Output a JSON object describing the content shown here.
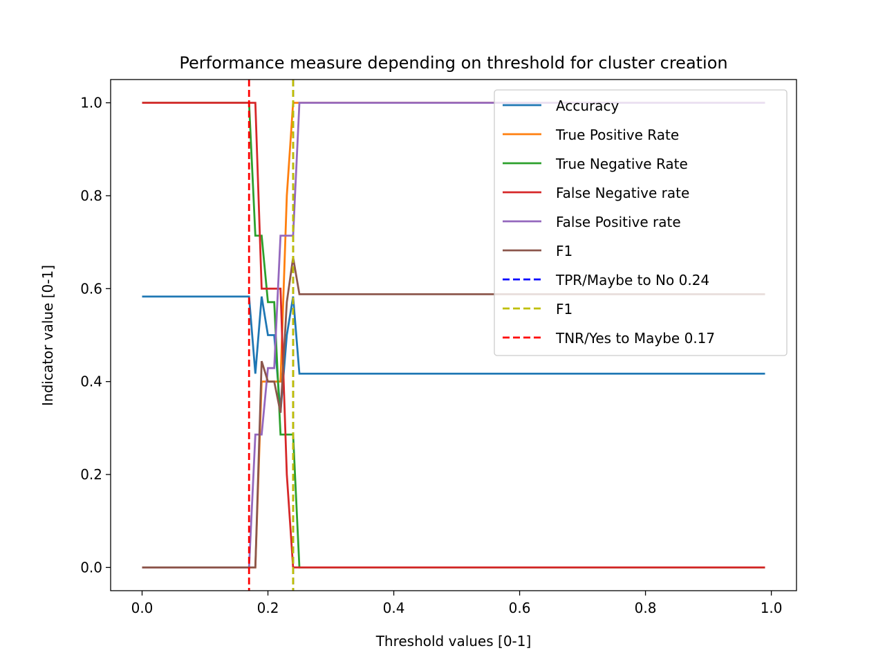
{
  "chart_data": {
    "type": "line",
    "title": "Performance measure depending on threshold for cluster creation",
    "xlabel": "Threshold values [0-1]",
    "ylabel": "Indicator value [0-1]",
    "xlim": [
      -0.05,
      1.04
    ],
    "ylim": [
      -0.05,
      1.05
    ],
    "xticks": [
      0.0,
      0.2,
      0.4,
      0.6,
      0.8,
      1.0
    ],
    "xtick_labels": [
      "0.0",
      "0.2",
      "0.4",
      "0.6",
      "0.8",
      "1.0"
    ],
    "yticks": [
      0.0,
      0.2,
      0.4,
      0.6,
      0.8,
      1.0
    ],
    "ytick_labels": [
      "0.0",
      "0.2",
      "0.4",
      "0.6",
      "0.8",
      "1.0"
    ],
    "grid": false,
    "legend_position": "upper right",
    "series": [
      {
        "name": "Accuracy",
        "color": "#1f77b4",
        "style": "solid",
        "points": [
          [
            0.0,
            0.583
          ],
          [
            0.17,
            0.583
          ],
          [
            0.18,
            0.417
          ],
          [
            0.19,
            0.583
          ],
          [
            0.2,
            0.5
          ],
          [
            0.21,
            0.5
          ],
          [
            0.22,
            0.333
          ],
          [
            0.23,
            0.5
          ],
          [
            0.24,
            0.583
          ],
          [
            0.25,
            0.417
          ],
          [
            0.99,
            0.417
          ]
        ]
      },
      {
        "name": "True Positive Rate",
        "color": "#ff7f0e",
        "style": "solid",
        "points": [
          [
            0.0,
            0.0
          ],
          [
            0.17,
            0.0
          ],
          [
            0.18,
            0.0
          ],
          [
            0.19,
            0.4
          ],
          [
            0.2,
            0.4
          ],
          [
            0.21,
            0.4
          ],
          [
            0.22,
            0.4
          ],
          [
            0.23,
            0.8
          ],
          [
            0.24,
            1.0
          ],
          [
            0.99,
            1.0
          ]
        ]
      },
      {
        "name": "True Negative Rate",
        "color": "#2ca02c",
        "style": "solid",
        "points": [
          [
            0.0,
            1.0
          ],
          [
            0.17,
            1.0
          ],
          [
            0.18,
            0.714
          ],
          [
            0.19,
            0.714
          ],
          [
            0.2,
            0.571
          ],
          [
            0.21,
            0.571
          ],
          [
            0.22,
            0.286
          ],
          [
            0.23,
            0.286
          ],
          [
            0.24,
            0.286
          ],
          [
            0.25,
            0.0
          ],
          [
            0.99,
            0.0
          ]
        ]
      },
      {
        "name": "False Negative rate",
        "color": "#d62728",
        "style": "solid",
        "points": [
          [
            0.0,
            1.0
          ],
          [
            0.17,
            1.0
          ],
          [
            0.18,
            1.0
          ],
          [
            0.19,
            0.6
          ],
          [
            0.2,
            0.6
          ],
          [
            0.21,
            0.6
          ],
          [
            0.22,
            0.6
          ],
          [
            0.23,
            0.2
          ],
          [
            0.24,
            0.0
          ],
          [
            0.99,
            0.0
          ]
        ]
      },
      {
        "name": "False Positive rate",
        "color": "#9467bd",
        "style": "solid",
        "points": [
          [
            0.0,
            0.0
          ],
          [
            0.17,
            0.0
          ],
          [
            0.18,
            0.286
          ],
          [
            0.19,
            0.286
          ],
          [
            0.2,
            0.429
          ],
          [
            0.21,
            0.429
          ],
          [
            0.22,
            0.714
          ],
          [
            0.23,
            0.714
          ],
          [
            0.24,
            0.714
          ],
          [
            0.25,
            1.0
          ],
          [
            0.99,
            1.0
          ]
        ]
      },
      {
        "name": "F1",
        "color": "#8c564b",
        "style": "solid",
        "points": [
          [
            0.0,
            0.0
          ],
          [
            0.17,
            0.0
          ],
          [
            0.18,
            0.0
          ],
          [
            0.19,
            0.444
          ],
          [
            0.2,
            0.4
          ],
          [
            0.21,
            0.4
          ],
          [
            0.22,
            0.333
          ],
          [
            0.23,
            0.571
          ],
          [
            0.24,
            0.667
          ],
          [
            0.25,
            0.588
          ],
          [
            0.99,
            0.588
          ]
        ]
      },
      {
        "name": "TPR/Maybe to No 0.24",
        "color": "#0000ff",
        "style": "dashed",
        "vline": 0.24
      },
      {
        "name": "F1",
        "color": "#bfbf00",
        "style": "dashed",
        "vline": 0.24
      },
      {
        "name": "TNR/Yes to Maybe 0.17",
        "color": "#ff0000",
        "style": "dashed",
        "vline": 0.17
      }
    ]
  }
}
